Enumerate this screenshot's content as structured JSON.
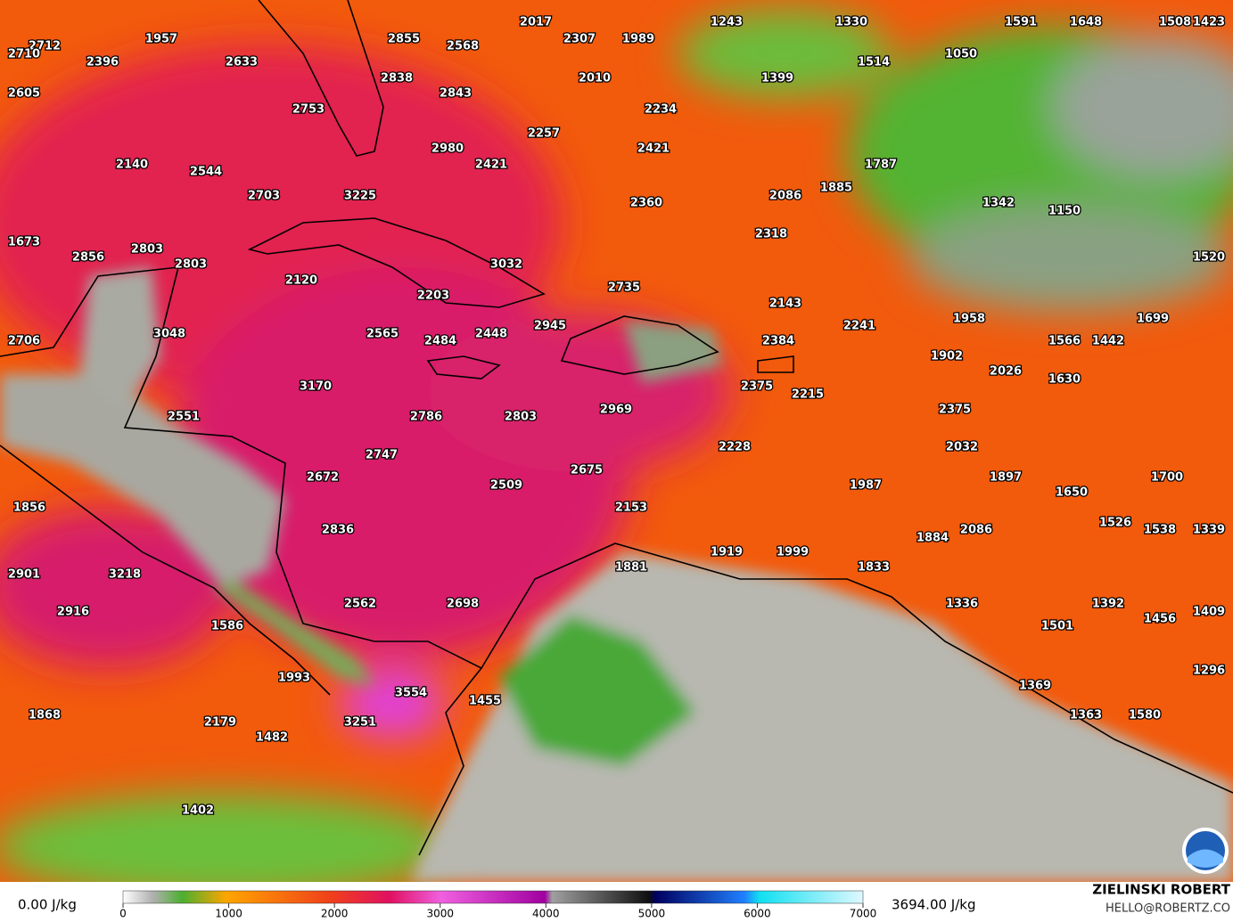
{
  "map": {
    "labels": [
      2017,
      2307,
      1989,
      1243,
      1330,
      1591,
      1648,
      1508,
      1423,
      1957,
      2855,
      2568,
      2712,
      2710,
      2396,
      2633,
      1514,
      1050,
      2838,
      2010,
      1399,
      2605,
      2843,
      2753,
      2234,
      2257,
      2980,
      2421,
      2140,
      2421,
      1787,
      2544,
      1885,
      2703,
      3225,
      2086,
      1342,
      2360,
      1150,
      2318,
      1673,
      2803,
      2856,
      3032,
      2803,
      1520,
      2120,
      2735,
      2203,
      2143,
      1958,
      1699,
      2945,
      2241,
      3048,
      2565,
      2448,
      2484,
      2384,
      1566,
      1442,
      2706,
      1902,
      2026,
      1630,
      3170,
      2375,
      2215,
      2969,
      2375,
      2551,
      2786,
      2803,
      2228,
      2032,
      2747,
      2675,
      2672,
      1897,
      1700,
      2509,
      1987,
      1650,
      1856,
      2153,
      1526,
      2836,
      2086,
      1538,
      1339,
      1884,
      1919,
      1999,
      1881,
      1833,
      2901,
      3218,
      2562,
      2698,
      1336,
      1392,
      2916,
      1456,
      1409,
      1586,
      1501,
      1296,
      1993,
      1369,
      3554,
      1455,
      1868,
      1363,
      1580,
      2179,
      3251,
      1482,
      1402
    ]
  },
  "colorbar": {
    "min_label": "0.00 J/kg",
    "max_label": "3694.00 J/kg",
    "lim": [
      0,
      7000
    ],
    "ticks": [
      0,
      1000,
      2000,
      3000,
      4000,
      5000,
      6000,
      7000
    ]
  },
  "credit": {
    "name": "ZIELINSKI ROBERT",
    "contact": "HELLO@ROBERTZ.CO"
  }
}
